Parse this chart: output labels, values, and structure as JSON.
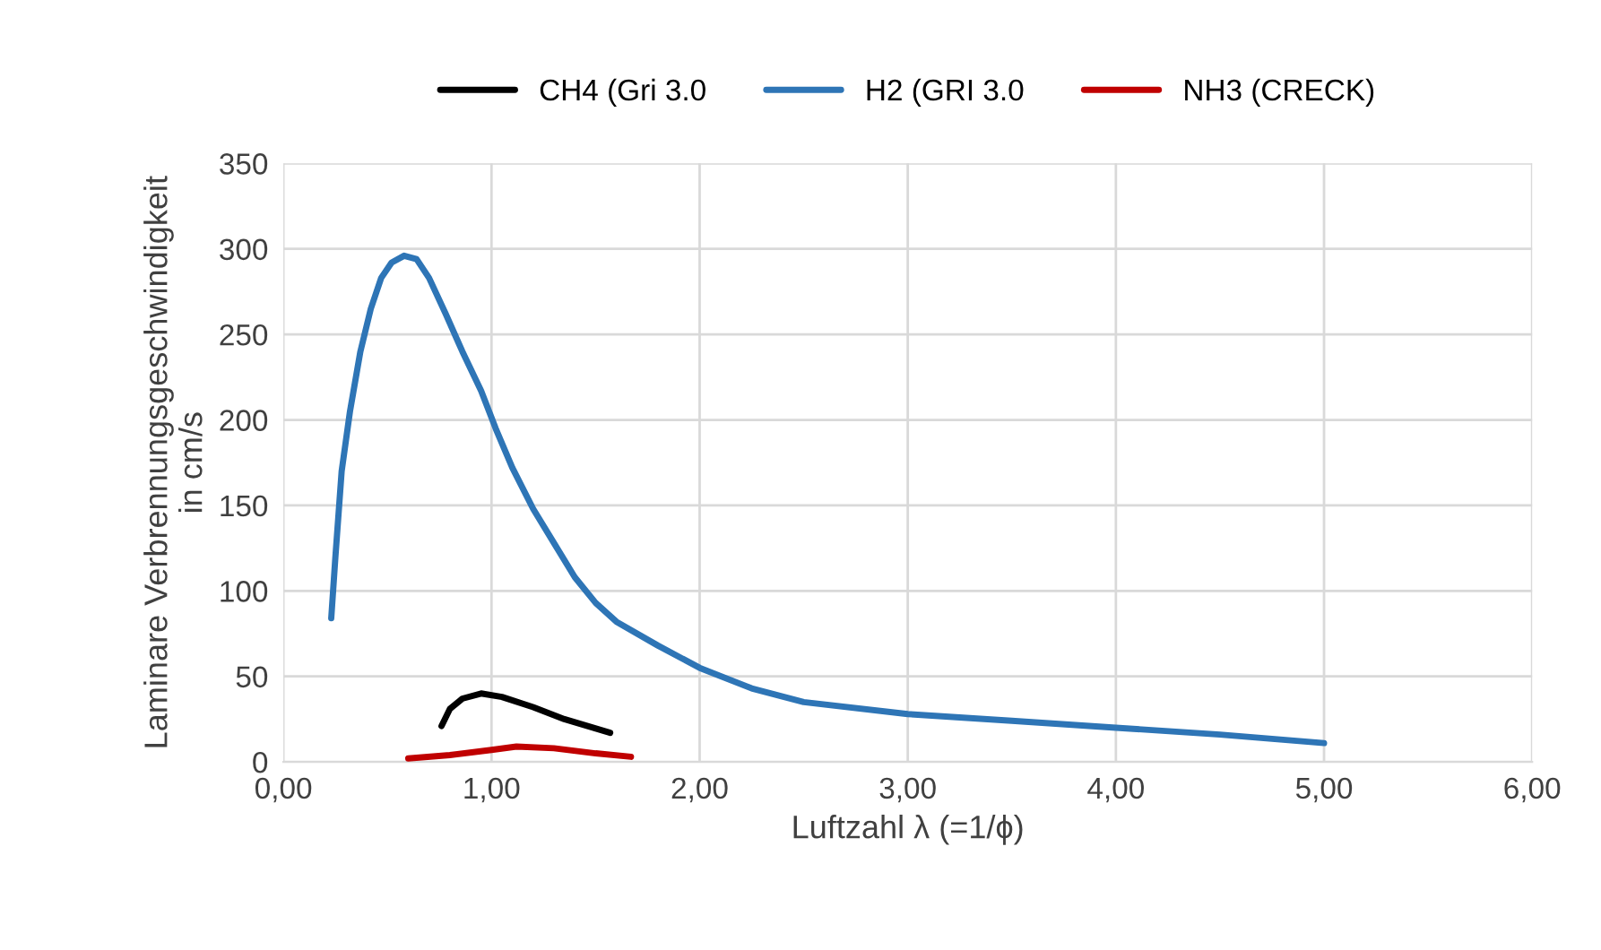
{
  "chart_data": {
    "type": "line",
    "xlabel": "Luftzahl λ (=1/ϕ)",
    "ylabel": "Laminare Verbrennungsgeschwindigkeit\nin cm/s",
    "xlim": [
      0,
      6
    ],
    "ylim": [
      0,
      350
    ],
    "xticks": [
      {
        "value": 0,
        "label": "0,00"
      },
      {
        "value": 1,
        "label": "1,00"
      },
      {
        "value": 2,
        "label": "2,00"
      },
      {
        "value": 3,
        "label": "3,00"
      },
      {
        "value": 4,
        "label": "4,00"
      },
      {
        "value": 5,
        "label": "5,00"
      },
      {
        "value": 6,
        "label": "6,00"
      }
    ],
    "yticks": [
      0,
      50,
      100,
      150,
      200,
      250,
      300,
      350
    ],
    "grid": true,
    "legend": "top",
    "marker": "none",
    "line_style": "solid",
    "series": [
      {
        "name": "CH4 (Gri 3.0",
        "color": "#000000",
        "x": [
          0.76,
          0.8,
          0.86,
          0.95,
          1.05,
          1.2,
          1.35,
          1.57
        ],
        "values": [
          21,
          31,
          37,
          40,
          38,
          32,
          25,
          17
        ]
      },
      {
        "name": "H2 (GRI 3.0",
        "color": "#2e75b6",
        "x": [
          0.23,
          0.25,
          0.28,
          0.32,
          0.37,
          0.42,
          0.47,
          0.52,
          0.58,
          0.64,
          0.7,
          0.78,
          0.86,
          0.95,
          1.02,
          1.1,
          1.2,
          1.3,
          1.4,
          1.5,
          1.6,
          1.8,
          2.0,
          2.25,
          2.5,
          3.0,
          3.5,
          4.0,
          4.5,
          5.0
        ],
        "values": [
          84,
          120,
          170,
          205,
          240,
          265,
          283,
          292,
          296,
          294,
          283,
          262,
          240,
          217,
          195,
          172,
          148,
          128,
          108,
          93,
          82,
          68,
          55,
          43,
          35,
          28,
          24,
          20,
          16,
          11
        ]
      },
      {
        "name": "NH3 (CRECK)",
        "color": "#c00000",
        "x": [
          0.6,
          0.8,
          1.0,
          1.12,
          1.3,
          1.5,
          1.67
        ],
        "values": [
          2,
          4,
          7,
          9,
          8,
          5,
          3
        ]
      }
    ]
  }
}
